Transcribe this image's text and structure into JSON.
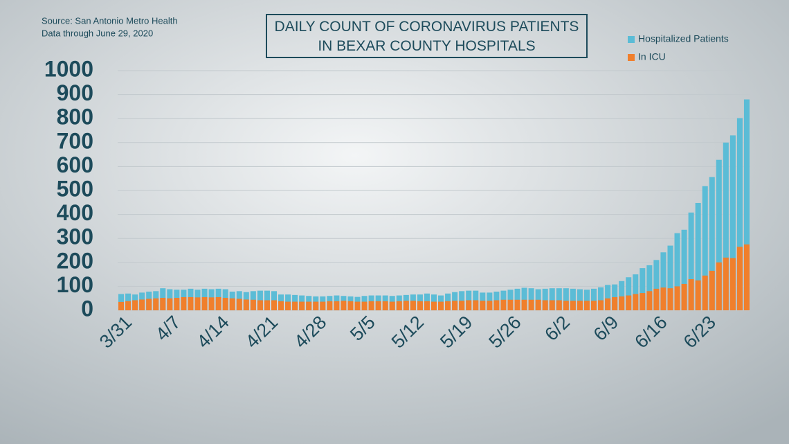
{
  "chart_data": {
    "type": "bar",
    "title": "DAILY COUNT OF CORONAVIRUS PATIENTS IN BEXAR COUNTY HOSPITALS",
    "source": "Source: San Antonio Metro Health",
    "note": "Data through June 29, 2020",
    "categories": [
      "3/31",
      null,
      null,
      null,
      null,
      null,
      null,
      "4/7",
      null,
      null,
      null,
      null,
      null,
      null,
      "4/14",
      null,
      null,
      null,
      null,
      null,
      null,
      "4/21",
      null,
      null,
      null,
      null,
      null,
      null,
      "4/28",
      null,
      null,
      null,
      null,
      null,
      null,
      "5/5",
      null,
      null,
      null,
      null,
      null,
      null,
      "5/12",
      null,
      null,
      null,
      null,
      null,
      null,
      "5/19",
      null,
      null,
      null,
      null,
      null,
      null,
      "5/26",
      null,
      null,
      null,
      null,
      null,
      null,
      "6/2",
      null,
      null,
      null,
      null,
      null,
      null,
      "6/9",
      null,
      null,
      null,
      null,
      null,
      null,
      "6/16",
      null,
      null,
      null,
      null,
      null,
      null,
      "6/23",
      null,
      null,
      null,
      null,
      null,
      null
    ],
    "series": [
      {
        "name": "Hospitalized Patients",
        "color": "#5bbcd6",
        "values": [
          68,
          70,
          66,
          74,
          78,
          80,
          92,
          88,
          86,
          86,
          90,
          86,
          90,
          88,
          90,
          88,
          78,
          80,
          76,
          80,
          82,
          82,
          80,
          66,
          66,
          64,
          62,
          60,
          58,
          58,
          60,
          62,
          60,
          58,
          56,
          60,
          62,
          62,
          62,
          60,
          62,
          64,
          66,
          66,
          70,
          66,
          62,
          70,
          76,
          80,
          82,
          82,
          74,
          74,
          78,
          82,
          86,
          90,
          94,
          92,
          88,
          90,
          92,
          92,
          92,
          90,
          88,
          86,
          90,
          96,
          106,
          108,
          122,
          138,
          150,
          176,
          188,
          210,
          242,
          270,
          322,
          336,
          408,
          448,
          518,
          556,
          628,
          700,
          730,
          802,
          880
        ]
      },
      {
        "name": "In ICU",
        "color": "#f07f2c",
        "values": [
          35,
          38,
          42,
          45,
          48,
          50,
          52,
          50,
          52,
          55,
          55,
          54,
          55,
          54,
          55,
          52,
          50,
          48,
          45,
          44,
          42,
          42,
          42,
          38,
          36,
          36,
          36,
          36,
          36,
          36,
          38,
          38,
          40,
          38,
          36,
          36,
          38,
          38,
          38,
          36,
          38,
          40,
          40,
          38,
          38,
          36,
          36,
          38,
          40,
          40,
          42,
          42,
          40,
          40,
          42,
          44,
          44,
          44,
          44,
          44,
          44,
          42,
          42,
          42,
          40,
          40,
          40,
          40,
          40,
          42,
          50,
          55,
          58,
          62,
          68,
          72,
          80,
          90,
          95,
          92,
          100,
          110,
          130,
          125,
          145,
          165,
          200,
          220,
          218,
          265,
          275
        ]
      }
    ],
    "ylim": [
      0,
      1000
    ],
    "yticks": [
      0,
      100,
      200,
      300,
      400,
      500,
      600,
      700,
      800,
      900,
      1000
    ],
    "grid": true,
    "legend": "top-right"
  }
}
